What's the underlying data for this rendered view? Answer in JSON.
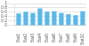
{
  "chart_data": {
    "type": "bar",
    "categories": [
      "Bat1",
      "Bat2",
      "Bat3",
      "Bat4",
      "Bat5",
      "Bat6",
      "Bat7",
      "Bat8",
      "Bat9",
      "Bat10"
    ],
    "values": [
      0.55,
      0.62,
      0.57,
      0.78,
      0.63,
      0.65,
      0.57,
      0.52,
      0.47,
      0.65
    ],
    "color": "#5bb8e8",
    "ylim": [
      0.0,
      1.0
    ],
    "yticks": [
      0,
      0.2,
      0.4,
      0.6,
      0.8,
      1
    ],
    "grid": true
  }
}
